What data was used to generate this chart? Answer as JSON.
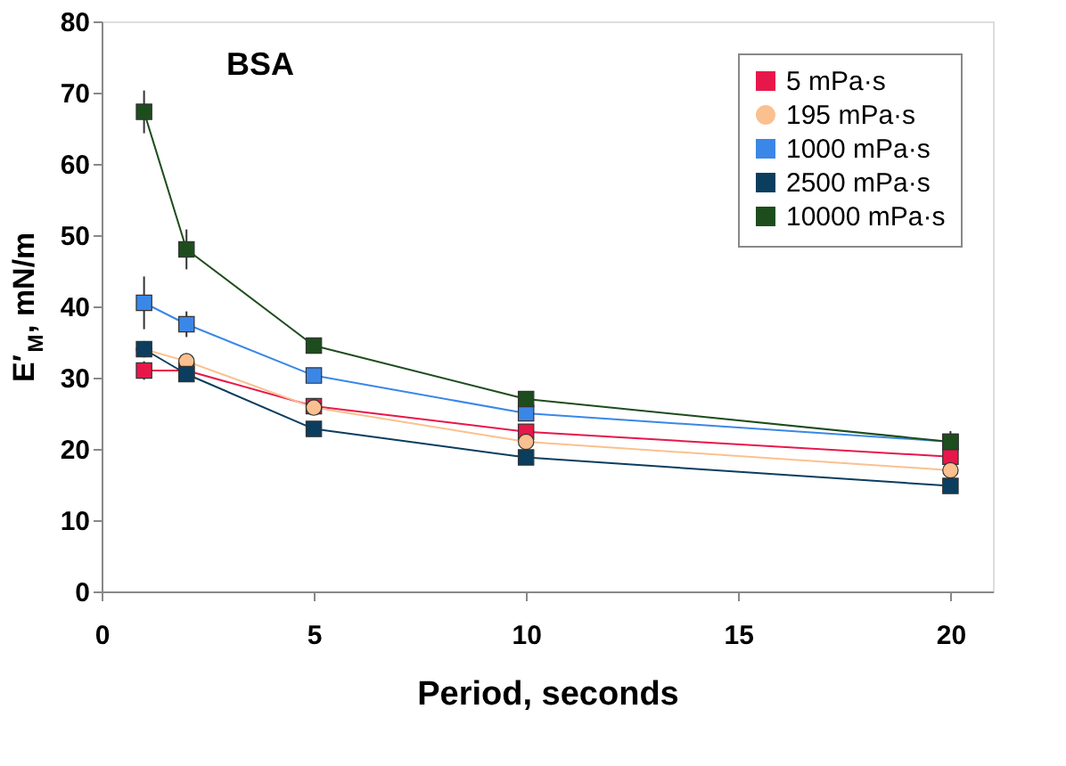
{
  "chart_data": {
    "type": "line",
    "ylabel": "E′$_{M}$, mN/m",
    "xlabel": "Period, seconds",
    "annotations": [
      "BSA"
    ],
    "x": [
      1,
      2,
      5,
      10,
      20
    ],
    "xlim": [
      0,
      21
    ],
    "xticks": [
      0,
      5,
      10,
      15,
      20
    ],
    "ylim": [
      0,
      80
    ],
    "yticks": [
      0,
      10,
      20,
      30,
      40,
      50,
      60,
      70,
      80
    ],
    "grid": false,
    "legend": "top right",
    "line_style": "solid",
    "series": [
      {
        "name": "5 mPa·s",
        "color": "#e8174a",
        "marker": "square",
        "values": [
          31,
          31,
          26,
          22.4,
          18.9
        ],
        "errors": [
          1.3,
          null,
          null,
          null,
          null
        ]
      },
      {
        "name": "195 mPa·s",
        "color": "#fbc08f",
        "marker": "circle",
        "values": [
          34,
          32.3,
          25.8,
          21,
          17
        ],
        "errors": [
          null,
          null,
          null,
          null,
          null
        ]
      },
      {
        "name": "1000 mPa·s",
        "color": "#3a87e8",
        "marker": "square",
        "values": [
          40.5,
          37.5,
          30.3,
          25,
          21
        ],
        "errors": [
          3.7,
          1.8,
          null,
          null,
          null
        ]
      },
      {
        "name": "2500 mPa·s",
        "color": "#0b3d5e",
        "marker": "square",
        "values": [
          34,
          30.5,
          22.8,
          18.8,
          14.8
        ],
        "errors": [
          null,
          null,
          null,
          null,
          null
        ]
      },
      {
        "name": "10000 mPa·s",
        "color": "#1d4d1d",
        "marker": "square",
        "values": [
          67.3,
          48,
          34.5,
          27,
          21
        ],
        "errors": [
          3,
          2.8,
          null,
          null,
          1.5
        ]
      }
    ]
  }
}
